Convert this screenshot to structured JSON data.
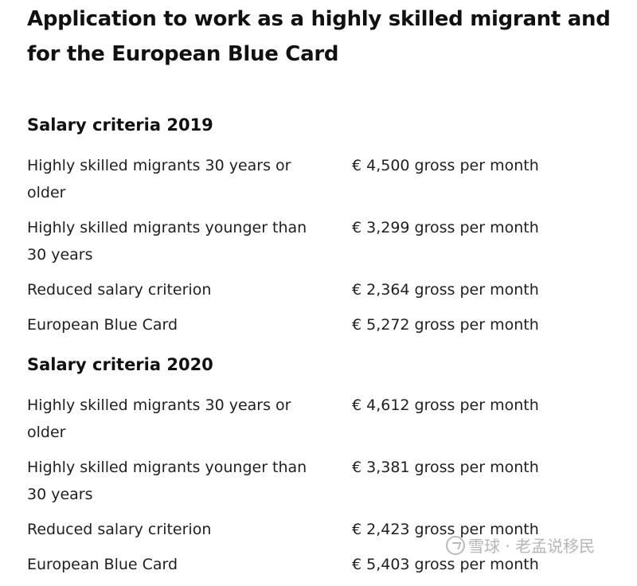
{
  "page": {
    "title": "Application to work as a highly skilled migrant and for the European Blue Card"
  },
  "sections": [
    {
      "heading": "Salary criteria 2019",
      "rows": [
        {
          "label": "Highly skilled migrants 30 years or older",
          "amount": "€ 4,500 gross per month"
        },
        {
          "label": "Highly skilled migrants younger than 30 years",
          "amount": "€ 3,299 gross per month"
        },
        {
          "label": "Reduced salary criterion",
          "amount": "€ 2,364 gross per month"
        },
        {
          "label": "European Blue Card",
          "amount": "€ 5,272 gross per month"
        }
      ]
    },
    {
      "heading": "Salary criteria 2020",
      "rows": [
        {
          "label": "Highly skilled migrants 30 years or older",
          "amount": "€ 4,612 gross per month"
        },
        {
          "label": "Highly skilled migrants younger than 30 years",
          "amount": "€ 3,381 gross per month"
        },
        {
          "label": "Reduced salary criterion",
          "amount": "€ 2,423 gross per month"
        },
        {
          "label": "European Blue Card",
          "amount": "€ 5,403 gross per month"
        }
      ]
    }
  ],
  "watermark": {
    "text": "雪球 · 老孟说移民",
    "logo_icon": "snowball-logo-icon"
  }
}
